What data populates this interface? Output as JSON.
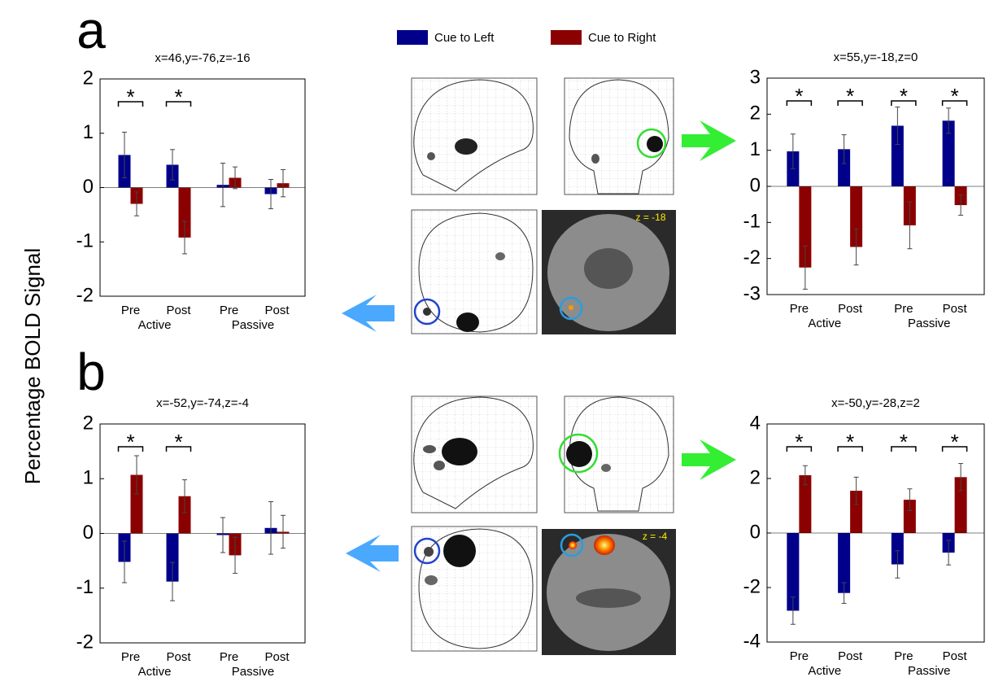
{
  "panel_labels": [
    "a",
    "b"
  ],
  "y_label": "Percentage BOLD Signal",
  "legend": [
    {
      "name": "Cue to Left",
      "color": "#00008b"
    },
    {
      "name": "Cue to Right",
      "color": "#8b0000"
    }
  ],
  "slice_labels": [
    "z = -18",
    "z = -4"
  ],
  "chart_data": [
    {
      "type": "bar",
      "title": "x=46,y=-76,z=-16",
      "categories": [
        "Pre",
        "Post",
        "Pre",
        "Post"
      ],
      "groups": [
        "Active",
        "Passive"
      ],
      "series": [
        {
          "values": [
            0.6,
            0.42,
            0.05,
            -0.12
          ],
          "errors": [
            0.42,
            0.28,
            0.4,
            0.27
          ]
        },
        {
          "values": [
            -0.3,
            -0.92,
            0.18,
            0.08
          ],
          "errors": [
            0.22,
            0.3,
            0.2,
            0.25
          ]
        }
      ],
      "annotations": [
        "*",
        "*"
      ],
      "ylim": [
        -2,
        2
      ],
      "yticks": [
        -2,
        -1,
        0,
        1,
        2
      ]
    },
    {
      "type": "bar",
      "title": "x=55,y=-18,z=0",
      "categories": [
        "Pre",
        "Post",
        "Pre",
        "Post"
      ],
      "groups": [
        "Active",
        "Passive"
      ],
      "series": [
        {
          "values": [
            0.97,
            1.03,
            1.68,
            1.82
          ],
          "errors": [
            0.48,
            0.4,
            0.52,
            0.35
          ]
        },
        {
          "values": [
            -2.25,
            -1.68,
            -1.08,
            -0.52
          ],
          "errors": [
            0.6,
            0.5,
            0.65,
            0.28
          ]
        }
      ],
      "annotations": [
        "*",
        "*",
        "*",
        "*"
      ],
      "ylim": [
        -3,
        3
      ],
      "yticks": [
        -3,
        -2,
        -1,
        0,
        1,
        2,
        3
      ]
    },
    {
      "type": "bar",
      "title": "x=-52,y=-74,z=-4",
      "categories": [
        "Pre",
        "Post",
        "Pre",
        "Post"
      ],
      "groups": [
        "Active",
        "Passive"
      ],
      "series": [
        {
          "values": [
            -0.52,
            -0.88,
            -0.03,
            0.1
          ],
          "errors": [
            0.38,
            0.35,
            0.32,
            0.48
          ]
        },
        {
          "values": [
            1.07,
            0.68,
            -0.4,
            0.03
          ],
          "errors": [
            0.35,
            0.3,
            0.33,
            0.3
          ]
        }
      ],
      "annotations": [
        "*",
        "*"
      ],
      "ylim": [
        -2,
        2
      ],
      "yticks": [
        -2,
        -1,
        0,
        1,
        2
      ]
    },
    {
      "type": "bar",
      "title": "x=-50,y=-28,z=2",
      "categories": [
        "Pre",
        "Post",
        "Pre",
        "Post"
      ],
      "groups": [
        "Active",
        "Passive"
      ],
      "series": [
        {
          "values": [
            -2.85,
            -2.2,
            -1.15,
            -0.72
          ],
          "errors": [
            0.5,
            0.38,
            0.5,
            0.45
          ]
        },
        {
          "values": [
            2.12,
            1.55,
            1.22,
            2.05
          ],
          "errors": [
            0.35,
            0.5,
            0.4,
            0.5
          ]
        }
      ],
      "annotations": [
        "*",
        "*",
        "*",
        "*"
      ],
      "ylim": [
        -4,
        4
      ],
      "yticks": [
        -4,
        -2,
        0,
        2,
        4
      ]
    }
  ]
}
